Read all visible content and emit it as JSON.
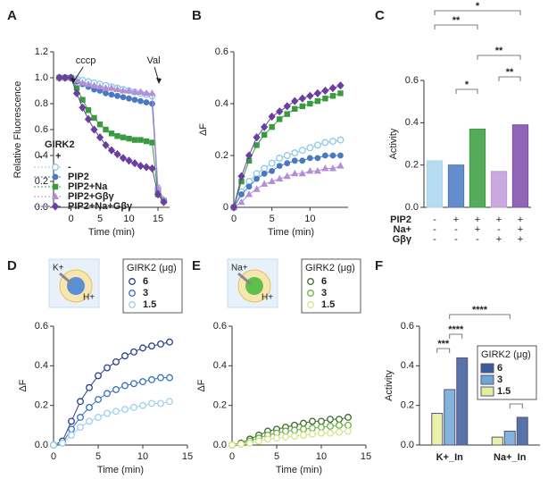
{
  "chart_data": [
    {
      "panel": "A",
      "type": "line",
      "xlabel": "Time (min)",
      "ylabel": "Relative Fluorescence",
      "annotations": [
        "cccp",
        "Val"
      ],
      "legend_title": "GIRK2",
      "legend_columns": [
        "-",
        "+"
      ],
      "x": [
        -2,
        -1,
        0,
        1,
        2,
        3,
        4,
        5,
        6,
        7,
        8,
        9,
        10,
        11,
        12,
        13,
        14,
        15,
        16
      ],
      "xlim": [
        -3,
        17
      ],
      "xticks": [
        0,
        5,
        10,
        15
      ],
      "ylim": [
        0,
        1.2
      ],
      "yticks": [
        {
          "value": 0,
          "label": "0.0"
        },
        0.2,
        0.4,
        0.6,
        0.8,
        {
          "value": 1,
          "label": "1.0"
        },
        1.2
      ],
      "series": [
        {
          "name": "-",
          "color": "#8ec8ea",
          "marker": "open-circle",
          "values": [
            1,
            1,
            1,
            0.99,
            0.98,
            0.97,
            0.96,
            0.95,
            0.94,
            0.93,
            0.92,
            0.91,
            0.9,
            0.89,
            0.88,
            0.87,
            0.86,
            0.15,
            0.05
          ]
        },
        {
          "name": "PIP2",
          "color": "#4a78c2",
          "marker": "circle",
          "values": [
            1,
            1,
            1,
            0.97,
            0.95,
            0.93,
            0.91,
            0.9,
            0.88,
            0.87,
            0.86,
            0.85,
            0.84,
            0.83,
            0.82,
            0.81,
            0.8,
            0.12,
            0.05
          ]
        },
        {
          "name": "PIP2+Na",
          "color": "#3a9a3f",
          "marker": "square",
          "values": [
            1,
            1,
            1,
            0.92,
            0.83,
            0.75,
            0.69,
            0.64,
            0.6,
            0.57,
            0.55,
            0.54,
            0.53,
            0.52,
            0.52,
            0.51,
            0.5,
            0.1,
            0.05
          ]
        },
        {
          "name": "PIP2+Gβγ",
          "color": "#b48fd6",
          "marker": "triangle",
          "values": [
            1,
            1,
            1,
            0.98,
            0.96,
            0.95,
            0.94,
            0.93,
            0.92,
            0.92,
            0.91,
            0.9,
            0.9,
            0.89,
            0.89,
            0.88,
            0.88,
            0.15,
            0.06
          ]
        },
        {
          "name": "PIP2+Na+Gβγ",
          "color": "#6a3fa0",
          "marker": "diamond",
          "values": [
            1,
            1,
            1,
            0.88,
            0.77,
            0.68,
            0.6,
            0.54,
            0.48,
            0.44,
            0.41,
            0.38,
            0.36,
            0.34,
            0.32,
            0.31,
            0.3,
            0.1,
            0.04
          ]
        }
      ]
    },
    {
      "panel": "B",
      "type": "line",
      "xlabel": "Time (min)",
      "ylabel": "ΔF",
      "x": [
        0,
        1,
        2,
        3,
        4,
        5,
        6,
        7,
        8,
        9,
        10,
        11,
        12,
        13,
        14
      ],
      "xlim": [
        0,
        15
      ],
      "xticks": [
        0,
        5,
        10
      ],
      "ylim": [
        0,
        0.6
      ],
      "yticks": [
        0,
        0.2,
        0.4,
        0.6
      ],
      "series": [
        {
          "color": "#8ec8ea",
          "marker": "open-circle",
          "values": [
            0,
            0.06,
            0.1,
            0.13,
            0.15,
            0.17,
            0.19,
            0.2,
            0.21,
            0.22,
            0.23,
            0.24,
            0.25,
            0.255,
            0.26
          ]
        },
        {
          "color": "#4a78c2",
          "marker": "circle",
          "values": [
            0,
            0.05,
            0.08,
            0.11,
            0.13,
            0.14,
            0.16,
            0.17,
            0.18,
            0.18,
            0.19,
            0.19,
            0.2,
            0.2,
            0.2
          ]
        },
        {
          "color": "#3a9a3f",
          "marker": "square",
          "values": [
            0,
            0.1,
            0.18,
            0.24,
            0.28,
            0.31,
            0.34,
            0.36,
            0.38,
            0.39,
            0.4,
            0.41,
            0.42,
            0.43,
            0.44
          ]
        },
        {
          "color": "#b48fd6",
          "marker": "triangle",
          "values": [
            0,
            0.02,
            0.05,
            0.07,
            0.09,
            0.1,
            0.11,
            0.12,
            0.13,
            0.13,
            0.14,
            0.14,
            0.15,
            0.15,
            0.16
          ]
        },
        {
          "color": "#6a3fa0",
          "marker": "diamond",
          "values": [
            0,
            0.12,
            0.2,
            0.27,
            0.31,
            0.35,
            0.37,
            0.39,
            0.41,
            0.42,
            0.43,
            0.44,
            0.45,
            0.46,
            0.47
          ]
        }
      ]
    },
    {
      "panel": "C",
      "type": "bar",
      "ylabel": "Activity",
      "values": [
        0.22,
        0.2,
        0.37,
        0.17,
        0.39
      ],
      "colors": [
        "#a9d6ee",
        "#4a78c2",
        "#3a9a3f",
        "#c09ad8",
        "#7b4aa8"
      ],
      "condition_rows": [
        {
          "name": "PIP2",
          "signs": [
            "-",
            "+",
            "+",
            "+",
            "+"
          ]
        },
        {
          "name": "Na+",
          "signs": [
            "-",
            "-",
            "+",
            "-",
            "+"
          ]
        },
        {
          "name": "Gβγ",
          "signs": [
            "-",
            "-",
            "-",
            "+",
            "+"
          ]
        }
      ],
      "ylim": [
        0,
        0.6
      ],
      "yticks": [
        {
          "value": 0,
          "label": "0.0"
        },
        0.2,
        0.4,
        0.6
      ],
      "significance": [
        "**",
        "*",
        "**",
        "*",
        "**"
      ]
    },
    {
      "panel": "D",
      "type": "line",
      "xlabel": "Time (min)",
      "ylabel": "ΔF",
      "inset_labels": [
        "K+",
        "H+"
      ],
      "legend_title": "GIRK2 (μg)",
      "x": [
        0,
        1,
        2,
        3,
        4,
        5,
        6,
        7,
        8,
        9,
        10,
        11,
        12,
        13
      ],
      "xlim": [
        0,
        15
      ],
      "xticks": [
        0,
        5,
        10,
        15
      ],
      "ylim": [
        0,
        0.6
      ],
      "yticks": [
        {
          "value": 0,
          "label": "0.0"
        },
        0.2,
        0.4,
        0.6
      ],
      "series": [
        {
          "name": "6",
          "color": "#2c3f8c",
          "marker": "open-circle",
          "values": [
            0,
            0.02,
            0.12,
            0.22,
            0.29,
            0.35,
            0.39,
            0.42,
            0.45,
            0.47,
            0.49,
            0.5,
            0.51,
            0.52
          ]
        },
        {
          "name": "3",
          "color": "#3b6fc0",
          "marker": "open-circle",
          "values": [
            0,
            0.01,
            0.08,
            0.14,
            0.19,
            0.23,
            0.26,
            0.28,
            0.3,
            0.31,
            0.32,
            0.33,
            0.34,
            0.34
          ]
        },
        {
          "name": "1.5",
          "color": "#9fd0ee",
          "marker": "open-circle",
          "values": [
            0,
            0.01,
            0.05,
            0.09,
            0.12,
            0.14,
            0.16,
            0.17,
            0.18,
            0.19,
            0.2,
            0.21,
            0.21,
            0.22
          ]
        }
      ]
    },
    {
      "panel": "E",
      "type": "line",
      "xlabel": "Time (min)",
      "ylabel": "ΔF",
      "inset_labels": [
        "Na+",
        "H+"
      ],
      "legend_title": "GIRK2 (μg)",
      "x": [
        0,
        1,
        2,
        3,
        4,
        5,
        6,
        7,
        8,
        9,
        10,
        11,
        12,
        13
      ],
      "xlim": [
        0,
        15
      ],
      "xticks": [
        0,
        5,
        10,
        15
      ],
      "ylim": [
        0,
        0.6
      ],
      "yticks": [
        {
          "value": 0,
          "label": "0.0"
        },
        0.2,
        0.4,
        0.6
      ],
      "series": [
        {
          "name": "6",
          "color": "#3d6b2a",
          "marker": "open-circle",
          "values": [
            0,
            0.01,
            0.03,
            0.05,
            0.07,
            0.08,
            0.09,
            0.1,
            0.11,
            0.12,
            0.12,
            0.13,
            0.13,
            0.14
          ]
        },
        {
          "name": "3",
          "color": "#6cb04a",
          "marker": "open-circle",
          "values": [
            0,
            0.005,
            0.02,
            0.035,
            0.05,
            0.06,
            0.07,
            0.075,
            0.08,
            0.085,
            0.09,
            0.095,
            0.1,
            0.1
          ]
        },
        {
          "name": "1.5",
          "color": "#d6e58a",
          "marker": "open-circle",
          "values": [
            0,
            0.005,
            0.01,
            0.02,
            0.03,
            0.035,
            0.04,
            0.045,
            0.05,
            0.055,
            0.06,
            0.06,
            0.065,
            0.07
          ]
        }
      ]
    },
    {
      "panel": "F",
      "type": "grouped-bar",
      "ylabel": "Activity",
      "legend_title": "GIRK2 (μg)",
      "categories": [
        "K+_In",
        "Na+_In"
      ],
      "ylim": [
        0,
        0.6
      ],
      "yticks": [
        {
          "value": 0,
          "label": "0.0"
        },
        0.2,
        0.4,
        0.6
      ],
      "series": [
        {
          "name": "6",
          "color": "#3b5a9a",
          "values": [
            0.44,
            0.14
          ]
        },
        {
          "name": "3",
          "color": "#6fa6d8",
          "values": [
            0.28,
            0.07
          ]
        },
        {
          "name": "1.5",
          "color": "#e6ee9a",
          "values": [
            0.16,
            0.04
          ]
        }
      ],
      "significance": [
        "****",
        "***",
        "****",
        "*"
      ]
    }
  ]
}
